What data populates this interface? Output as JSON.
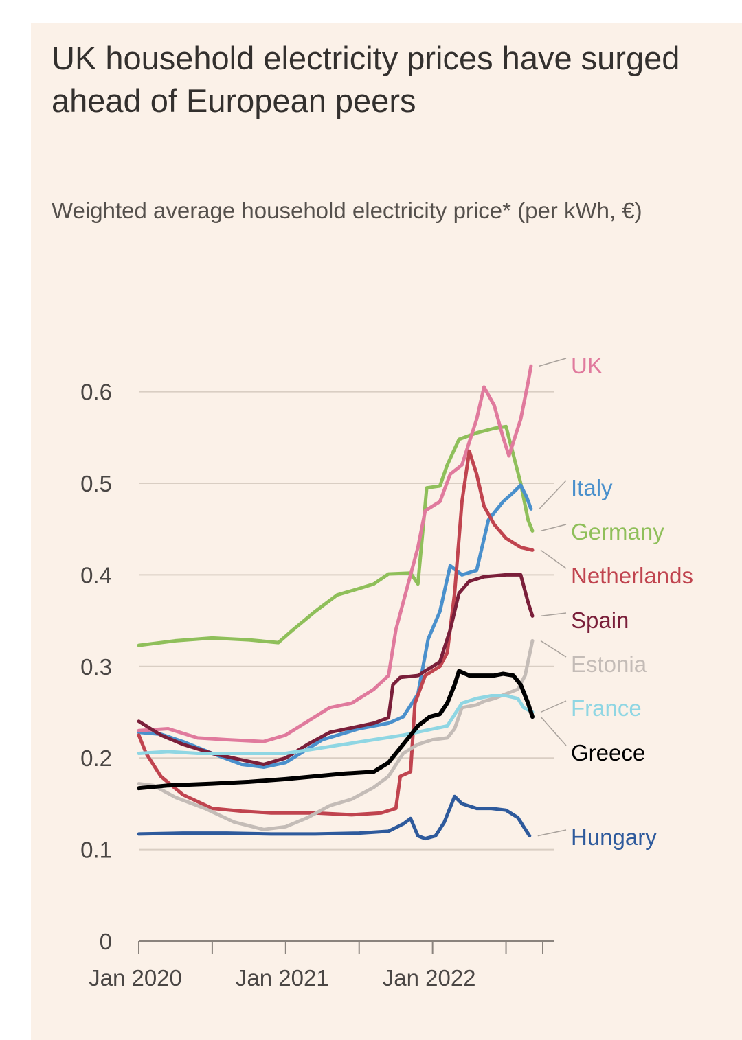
{
  "title": "UK household electricity prices have surged ahead of European peers",
  "subtitle": "Weighted average household electricity price* (per kWh, €)",
  "chart_data": {
    "type": "line",
    "title": "UK household electricity prices have surged ahead of European peers",
    "ylabel": "Weighted average household electricity price* (per kWh, €)",
    "xlabel": "",
    "ylim": [
      0,
      0.65
    ],
    "xlim": [
      2020.0,
      2022.75
    ],
    "yticks": [
      {
        "v": 0,
        "label": "0"
      },
      {
        "v": 0.1,
        "label": "0.1"
      },
      {
        "v": 0.2,
        "label": "0.2"
      },
      {
        "v": 0.3,
        "label": "0.3"
      },
      {
        "v": 0.4,
        "label": "0.4"
      },
      {
        "v": 0.5,
        "label": "0.5"
      },
      {
        "v": 0.6,
        "label": "0.6"
      }
    ],
    "xticks_minor": [
      2020.0,
      2020.5,
      2021.0,
      2021.5,
      2022.0,
      2022.5,
      2022.75
    ],
    "xticks_labeled": [
      {
        "v": 2020.0,
        "label": "Jan 2020"
      },
      {
        "v": 2021.0,
        "label": "Jan 2021"
      },
      {
        "v": 2022.0,
        "label": "Jan 2022"
      }
    ],
    "grid": true,
    "series": [
      {
        "name": "Germany",
        "color": "#8fbf5a",
        "width": 5,
        "label_y": 0.447,
        "points": [
          [
            2020.0,
            0.323
          ],
          [
            2020.25,
            0.328
          ],
          [
            2020.5,
            0.331
          ],
          [
            2020.75,
            0.329
          ],
          [
            2020.95,
            0.326
          ],
          [
            2021.05,
            0.34
          ],
          [
            2021.2,
            0.36
          ],
          [
            2021.35,
            0.378
          ],
          [
            2021.5,
            0.385
          ],
          [
            2021.6,
            0.39
          ],
          [
            2021.7,
            0.401
          ],
          [
            2021.85,
            0.402
          ],
          [
            2021.9,
            0.39
          ],
          [
            2021.96,
            0.495
          ],
          [
            2022.05,
            0.497
          ],
          [
            2022.1,
            0.52
          ],
          [
            2022.18,
            0.548
          ],
          [
            2022.3,
            0.555
          ],
          [
            2022.42,
            0.56
          ],
          [
            2022.5,
            0.562
          ],
          [
            2022.6,
            0.5
          ],
          [
            2022.65,
            0.46
          ],
          [
            2022.68,
            0.448
          ]
        ]
      },
      {
        "name": "Italy",
        "color": "#4a90cc",
        "width": 5,
        "label_y": 0.5,
        "points": [
          [
            2020.0,
            0.228
          ],
          [
            2020.15,
            0.226
          ],
          [
            2020.3,
            0.218
          ],
          [
            2020.5,
            0.205
          ],
          [
            2020.7,
            0.193
          ],
          [
            2020.85,
            0.19
          ],
          [
            2021.0,
            0.195
          ],
          [
            2021.1,
            0.205
          ],
          [
            2021.25,
            0.22
          ],
          [
            2021.5,
            0.232
          ],
          [
            2021.7,
            0.238
          ],
          [
            2021.8,
            0.245
          ],
          [
            2021.9,
            0.27
          ],
          [
            2021.97,
            0.33
          ],
          [
            2022.05,
            0.36
          ],
          [
            2022.12,
            0.41
          ],
          [
            2022.2,
            0.4
          ],
          [
            2022.3,
            0.405
          ],
          [
            2022.38,
            0.46
          ],
          [
            2022.48,
            0.48
          ],
          [
            2022.55,
            0.49
          ],
          [
            2022.6,
            0.498
          ],
          [
            2022.64,
            0.485
          ],
          [
            2022.67,
            0.472
          ]
        ]
      },
      {
        "name": "UK",
        "color": "#e07a9d",
        "width": 5,
        "label_y": 0.628,
        "points": [
          [
            2020.0,
            0.23
          ],
          [
            2020.2,
            0.232
          ],
          [
            2020.4,
            0.222
          ],
          [
            2020.6,
            0.22
          ],
          [
            2020.85,
            0.218
          ],
          [
            2021.0,
            0.225
          ],
          [
            2021.15,
            0.24
          ],
          [
            2021.3,
            0.255
          ],
          [
            2021.45,
            0.26
          ],
          [
            2021.6,
            0.275
          ],
          [
            2021.7,
            0.29
          ],
          [
            2021.75,
            0.34
          ],
          [
            2021.85,
            0.4
          ],
          [
            2021.9,
            0.43
          ],
          [
            2021.95,
            0.47
          ],
          [
            2022.05,
            0.48
          ],
          [
            2022.12,
            0.51
          ],
          [
            2022.2,
            0.52
          ],
          [
            2022.3,
            0.57
          ],
          [
            2022.35,
            0.605
          ],
          [
            2022.42,
            0.585
          ],
          [
            2022.48,
            0.55
          ],
          [
            2022.52,
            0.53
          ],
          [
            2022.6,
            0.57
          ],
          [
            2022.65,
            0.61
          ],
          [
            2022.67,
            0.628
          ]
        ]
      },
      {
        "name": "Netherlands",
        "color": "#c0444f",
        "width": 5,
        "label_y": 0.427,
        "points": [
          [
            2020.0,
            0.225
          ],
          [
            2020.05,
            0.205
          ],
          [
            2020.15,
            0.18
          ],
          [
            2020.3,
            0.16
          ],
          [
            2020.5,
            0.145
          ],
          [
            2020.7,
            0.142
          ],
          [
            2020.9,
            0.14
          ],
          [
            2021.2,
            0.14
          ],
          [
            2021.45,
            0.138
          ],
          [
            2021.65,
            0.14
          ],
          [
            2021.75,
            0.145
          ],
          [
            2021.78,
            0.18
          ],
          [
            2021.85,
            0.185
          ],
          [
            2021.88,
            0.26
          ],
          [
            2021.95,
            0.29
          ],
          [
            2022.05,
            0.3
          ],
          [
            2022.1,
            0.315
          ],
          [
            2022.15,
            0.38
          ],
          [
            2022.2,
            0.48
          ],
          [
            2022.25,
            0.535
          ],
          [
            2022.3,
            0.51
          ],
          [
            2022.35,
            0.475
          ],
          [
            2022.42,
            0.455
          ],
          [
            2022.5,
            0.44
          ],
          [
            2022.6,
            0.43
          ],
          [
            2022.68,
            0.427
          ]
        ]
      },
      {
        "name": "Spain",
        "color": "#7a1f3a",
        "width": 5,
        "label_y": 0.355,
        "points": [
          [
            2020.0,
            0.24
          ],
          [
            2020.15,
            0.225
          ],
          [
            2020.3,
            0.215
          ],
          [
            2020.5,
            0.205
          ],
          [
            2020.7,
            0.198
          ],
          [
            2020.85,
            0.193
          ],
          [
            2021.0,
            0.2
          ],
          [
            2021.15,
            0.215
          ],
          [
            2021.3,
            0.228
          ],
          [
            2021.45,
            0.233
          ],
          [
            2021.6,
            0.238
          ],
          [
            2021.7,
            0.244
          ],
          [
            2021.73,
            0.28
          ],
          [
            2021.78,
            0.288
          ],
          [
            2021.9,
            0.29
          ],
          [
            2021.95,
            0.295
          ],
          [
            2022.05,
            0.305
          ],
          [
            2022.12,
            0.34
          ],
          [
            2022.18,
            0.38
          ],
          [
            2022.25,
            0.393
          ],
          [
            2022.35,
            0.398
          ],
          [
            2022.5,
            0.4
          ],
          [
            2022.6,
            0.4
          ],
          [
            2022.65,
            0.37
          ],
          [
            2022.68,
            0.355
          ]
        ]
      },
      {
        "name": "Estonia",
        "color": "#c4bcb7",
        "width": 5,
        "label_y": 0.328,
        "points": [
          [
            2020.0,
            0.172
          ],
          [
            2020.1,
            0.17
          ],
          [
            2020.25,
            0.157
          ],
          [
            2020.45,
            0.145
          ],
          [
            2020.65,
            0.13
          ],
          [
            2020.85,
            0.122
          ],
          [
            2021.0,
            0.125
          ],
          [
            2021.15,
            0.135
          ],
          [
            2021.3,
            0.148
          ],
          [
            2021.45,
            0.155
          ],
          [
            2021.6,
            0.168
          ],
          [
            2021.7,
            0.18
          ],
          [
            2021.8,
            0.205
          ],
          [
            2021.9,
            0.215
          ],
          [
            2022.0,
            0.22
          ],
          [
            2022.1,
            0.222
          ],
          [
            2022.15,
            0.232
          ],
          [
            2022.2,
            0.255
          ],
          [
            2022.3,
            0.258
          ],
          [
            2022.35,
            0.262
          ],
          [
            2022.42,
            0.265
          ],
          [
            2022.5,
            0.27
          ],
          [
            2022.58,
            0.275
          ],
          [
            2022.63,
            0.29
          ],
          [
            2022.68,
            0.328
          ]
        ]
      },
      {
        "name": "France",
        "color": "#8fd6e3",
        "width": 5,
        "label_y": 0.25,
        "points": [
          [
            2020.0,
            0.205
          ],
          [
            2020.2,
            0.207
          ],
          [
            2020.4,
            0.205
          ],
          [
            2020.6,
            0.205
          ],
          [
            2020.8,
            0.205
          ],
          [
            2021.0,
            0.205
          ],
          [
            2021.2,
            0.21
          ],
          [
            2021.4,
            0.215
          ],
          [
            2021.6,
            0.22
          ],
          [
            2021.8,
            0.225
          ],
          [
            2021.95,
            0.23
          ],
          [
            2022.1,
            0.235
          ],
          [
            2022.2,
            0.26
          ],
          [
            2022.3,
            0.265
          ],
          [
            2022.4,
            0.268
          ],
          [
            2022.5,
            0.268
          ],
          [
            2022.58,
            0.265
          ],
          [
            2022.62,
            0.255
          ],
          [
            2022.68,
            0.25
          ]
        ]
      },
      {
        "name": "Greece",
        "color": "#000000",
        "width": 6,
        "label_y": 0.245,
        "points": [
          [
            2020.0,
            0.167
          ],
          [
            2020.2,
            0.17
          ],
          [
            2020.5,
            0.172
          ],
          [
            2020.75,
            0.174
          ],
          [
            2021.0,
            0.177
          ],
          [
            2021.2,
            0.18
          ],
          [
            2021.4,
            0.183
          ],
          [
            2021.6,
            0.185
          ],
          [
            2021.7,
            0.195
          ],
          [
            2021.8,
            0.215
          ],
          [
            2021.9,
            0.235
          ],
          [
            2021.98,
            0.245
          ],
          [
            2022.05,
            0.248
          ],
          [
            2022.1,
            0.26
          ],
          [
            2022.15,
            0.28
          ],
          [
            2022.18,
            0.295
          ],
          [
            2022.25,
            0.29
          ],
          [
            2022.35,
            0.29
          ],
          [
            2022.42,
            0.29
          ],
          [
            2022.48,
            0.292
          ],
          [
            2022.55,
            0.29
          ],
          [
            2022.6,
            0.28
          ],
          [
            2022.65,
            0.26
          ],
          [
            2022.68,
            0.245
          ]
        ]
      },
      {
        "name": "Hungary",
        "color": "#2e5a9c",
        "width": 5,
        "label_y": 0.115,
        "points": [
          [
            2020.0,
            0.117
          ],
          [
            2020.3,
            0.118
          ],
          [
            2020.6,
            0.118
          ],
          [
            2020.9,
            0.117
          ],
          [
            2021.2,
            0.117
          ],
          [
            2021.5,
            0.118
          ],
          [
            2021.7,
            0.12
          ],
          [
            2021.8,
            0.128
          ],
          [
            2021.85,
            0.134
          ],
          [
            2021.9,
            0.115
          ],
          [
            2021.95,
            0.112
          ],
          [
            2022.02,
            0.115
          ],
          [
            2022.08,
            0.13
          ],
          [
            2022.15,
            0.158
          ],
          [
            2022.2,
            0.15
          ],
          [
            2022.3,
            0.145
          ],
          [
            2022.4,
            0.145
          ],
          [
            2022.5,
            0.143
          ],
          [
            2022.58,
            0.135
          ],
          [
            2022.62,
            0.125
          ],
          [
            2022.66,
            0.115
          ]
        ]
      }
    ]
  },
  "labels": [
    {
      "name": "UK",
      "color": "#e07a9d"
    },
    {
      "name": "Italy",
      "color": "#4a90cc"
    },
    {
      "name": "Germany",
      "color": "#8fbf5a"
    },
    {
      "name": "Netherlands",
      "color": "#c0444f"
    },
    {
      "name": "Spain",
      "color": "#7a1f3a"
    },
    {
      "name": "Estonia",
      "color": "#c4bcb7"
    },
    {
      "name": "France",
      "color": "#8fd6e3"
    },
    {
      "name": "Greece",
      "color": "#000000"
    },
    {
      "name": "Hungary",
      "color": "#2e5a9c"
    }
  ]
}
